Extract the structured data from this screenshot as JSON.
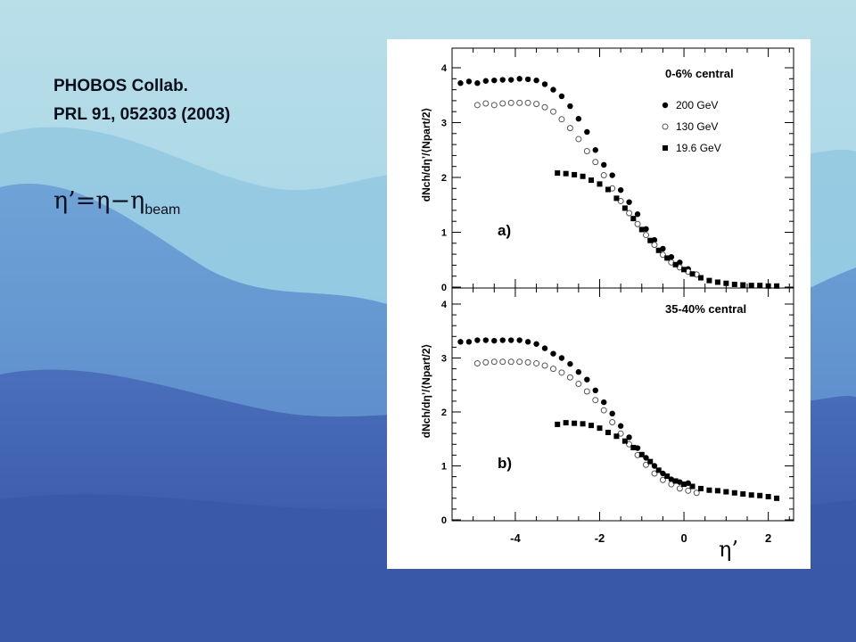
{
  "reference": {
    "line1": "PHOBOS Collab.",
    "line2": "PRL 91, 052303 (2003)"
  },
  "formula": {
    "lhs": "η’=η−η",
    "sub": "beam"
  },
  "colors": {
    "background_sky": "#a9d6e6",
    "background_mountains": "#3f63b0",
    "figure_bg": "#ffffff",
    "ink": "#000000"
  },
  "chart_data": [
    {
      "type": "scatter",
      "panel_label": "a)",
      "title": "0-6% central",
      "ylabel": "dNch/dη’/⟨Npart/2⟩",
      "xlabel": "η’",
      "xlim": [
        -5.5,
        2.6
      ],
      "ylim": [
        0,
        4.2
      ],
      "yticks": [
        "0",
        "1",
        "2",
        "3",
        "4"
      ],
      "xticks": [
        "-4",
        "-2",
        "0",
        "2"
      ],
      "legend_position": "top-right",
      "series": [
        {
          "name": "200 GeV",
          "marker": "filled-circle",
          "x": [
            -5.3,
            -5.1,
            -4.9,
            -4.7,
            -4.5,
            -4.3,
            -4.1,
            -3.9,
            -3.7,
            -3.5,
            -3.3,
            -3.1,
            -2.9,
            -2.7,
            -2.5,
            -2.3,
            -2.1,
            -1.9,
            -1.7,
            -1.5,
            -1.3,
            -1.1,
            -0.9,
            -0.7,
            -0.5,
            -0.3,
            -0.1,
            0.1
          ],
          "y": [
            3.72,
            3.75,
            3.72,
            3.76,
            3.77,
            3.78,
            3.78,
            3.8,
            3.79,
            3.77,
            3.7,
            3.6,
            3.48,
            3.3,
            3.07,
            2.83,
            2.5,
            2.23,
            2.04,
            1.77,
            1.55,
            1.33,
            1.06,
            0.86,
            0.7,
            0.55,
            0.45,
            0.33
          ]
        },
        {
          "name": "130 GeV",
          "marker": "open-circle",
          "x": [
            -4.9,
            -4.7,
            -4.5,
            -4.3,
            -4.1,
            -3.9,
            -3.7,
            -3.5,
            -3.3,
            -3.1,
            -2.9,
            -2.7,
            -2.5,
            -2.3,
            -2.1,
            -1.9,
            -1.7,
            -1.5,
            -1.3,
            -1.1,
            -0.9,
            -0.7,
            -0.5,
            -0.3,
            -0.1,
            0.1,
            0.3
          ],
          "y": [
            3.32,
            3.35,
            3.32,
            3.35,
            3.36,
            3.36,
            3.36,
            3.34,
            3.28,
            3.2,
            3.06,
            2.9,
            2.7,
            2.48,
            2.28,
            2.04,
            1.8,
            1.57,
            1.35,
            1.15,
            0.95,
            0.77,
            0.59,
            0.45,
            0.36,
            0.28,
            0.23
          ]
        },
        {
          "name": "19.6 GeV",
          "marker": "filled-square",
          "x": [
            -3.0,
            -2.8,
            -2.6,
            -2.4,
            -2.2,
            -2.0,
            -1.8,
            -1.6,
            -1.4,
            -1.2,
            -1.0,
            -0.8,
            -0.6,
            -0.4,
            -0.2,
            0.0,
            0.2,
            0.4,
            0.6,
            0.8,
            1.0,
            1.2,
            1.4,
            1.6,
            1.8,
            2.0,
            2.2
          ],
          "y": [
            2.08,
            2.07,
            2.05,
            2.02,
            1.95,
            1.88,
            1.78,
            1.62,
            1.44,
            1.25,
            1.05,
            0.85,
            0.67,
            0.53,
            0.41,
            0.32,
            0.24,
            0.17,
            0.12,
            0.09,
            0.07,
            0.05,
            0.04,
            0.03,
            0.03,
            0.02,
            0.02
          ]
        }
      ]
    },
    {
      "type": "scatter",
      "panel_label": "b)",
      "title": "35-40% central",
      "ylabel": "dNch/dη’/⟨Npart/2⟩",
      "xlabel": "η’",
      "xlim": [
        -5.5,
        2.6
      ],
      "ylim": [
        0,
        4.2
      ],
      "yticks": [
        "0",
        "1",
        "2",
        "3",
        "4"
      ],
      "xticks": [
        "-4",
        "-2",
        "0",
        "2"
      ],
      "series": [
        {
          "name": "200 GeV",
          "marker": "filled-circle",
          "x": [
            -5.3,
            -5.1,
            -4.9,
            -4.7,
            -4.5,
            -4.3,
            -4.1,
            -3.9,
            -3.7,
            -3.5,
            -3.3,
            -3.1,
            -2.9,
            -2.7,
            -2.5,
            -2.3,
            -2.1,
            -1.9,
            -1.7,
            -1.5,
            -1.3,
            -1.1,
            -0.9,
            -0.7,
            -0.5,
            -0.3,
            -0.1,
            0.1
          ],
          "y": [
            3.3,
            3.3,
            3.33,
            3.33,
            3.32,
            3.33,
            3.33,
            3.33,
            3.3,
            3.26,
            3.18,
            3.08,
            3.0,
            2.89,
            2.74,
            2.6,
            2.4,
            2.18,
            1.97,
            1.74,
            1.53,
            1.33,
            1.15,
            1.0,
            0.86,
            0.75,
            0.7,
            0.68
          ]
        },
        {
          "name": "130 GeV",
          "marker": "open-circle",
          "x": [
            -4.9,
            -4.7,
            -4.5,
            -4.3,
            -4.1,
            -3.9,
            -3.7,
            -3.5,
            -3.3,
            -3.1,
            -2.9,
            -2.7,
            -2.5,
            -2.3,
            -2.1,
            -1.9,
            -1.7,
            -1.5,
            -1.3,
            -1.1,
            -0.9,
            -0.7,
            -0.5,
            -0.3,
            -0.1,
            0.1,
            0.3
          ],
          "y": [
            2.9,
            2.92,
            2.93,
            2.93,
            2.93,
            2.93,
            2.92,
            2.9,
            2.86,
            2.8,
            2.73,
            2.64,
            2.52,
            2.38,
            2.22,
            2.03,
            1.81,
            1.6,
            1.4,
            1.2,
            1.02,
            0.86,
            0.74,
            0.66,
            0.58,
            0.54,
            0.5
          ]
        },
        {
          "name": "19.6 GeV",
          "marker": "filled-square",
          "x": [
            -3.0,
            -2.8,
            -2.6,
            -2.4,
            -2.2,
            -2.0,
            -1.8,
            -1.6,
            -1.4,
            -1.2,
            -1.0,
            -0.8,
            -0.6,
            -0.4,
            -0.2,
            0.0,
            0.2,
            0.4,
            0.6,
            0.8,
            1.0,
            1.2,
            1.4,
            1.6,
            1.8,
            2.0,
            2.2
          ],
          "y": [
            1.77,
            1.8,
            1.79,
            1.78,
            1.75,
            1.7,
            1.62,
            1.55,
            1.46,
            1.34,
            1.21,
            1.08,
            0.92,
            0.81,
            0.72,
            0.66,
            0.62,
            0.58,
            0.55,
            0.54,
            0.52,
            0.5,
            0.48,
            0.46,
            0.45,
            0.43,
            0.4
          ]
        }
      ]
    }
  ]
}
